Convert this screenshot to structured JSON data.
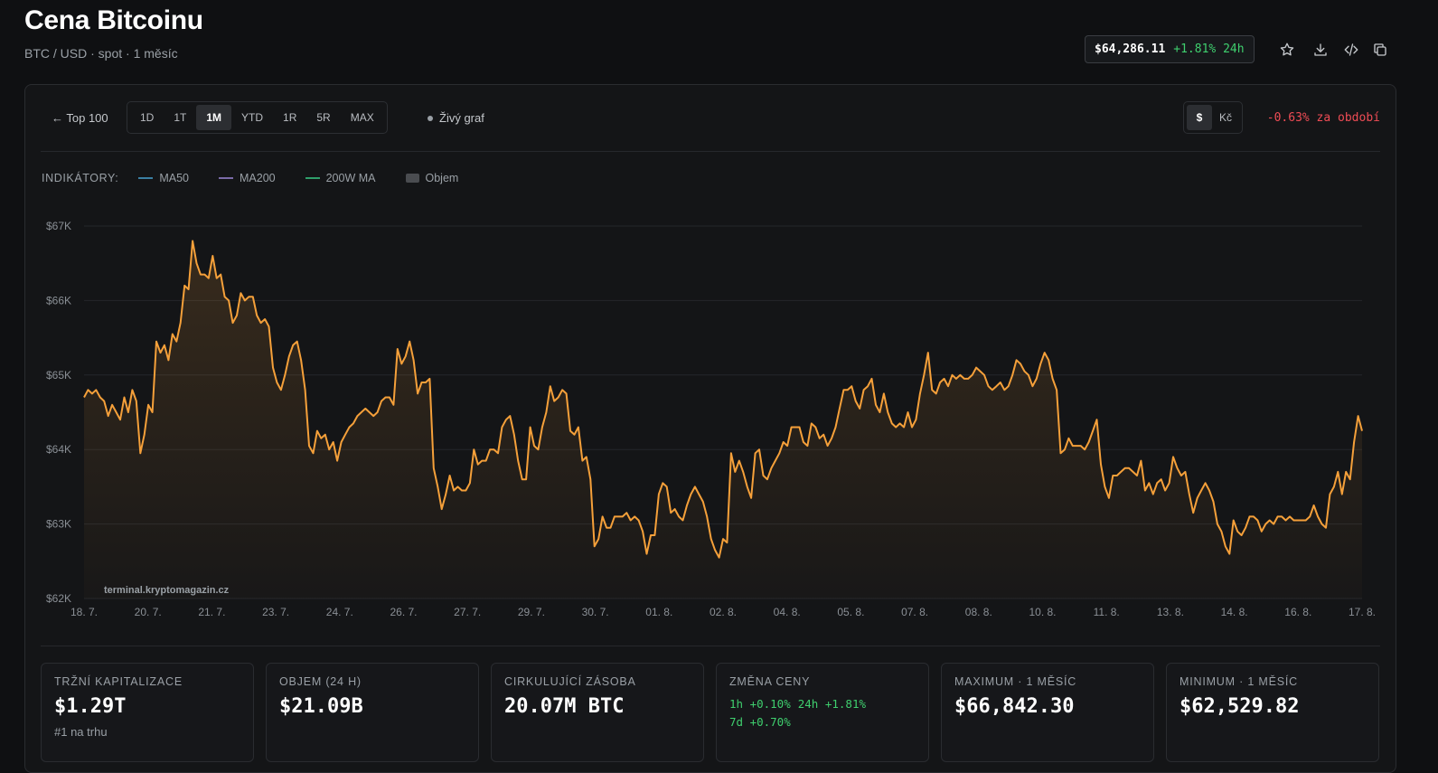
{
  "header": {
    "title": "Cena Bitcoinu",
    "subtitle": "BTC / USD · spot · 1 měsíc",
    "price": "$64,286.11",
    "change_24h": "+1.81% 24h",
    "icons": [
      "star-icon",
      "download-icon",
      "code-icon",
      "copy-icon"
    ]
  },
  "toolbar": {
    "back_label": "← Top 100",
    "ranges": [
      "1D",
      "1T",
      "1M",
      "YTD",
      "1R",
      "5R",
      "MAX"
    ],
    "active_range": "1M",
    "live_label": "Živý graf",
    "currencies": [
      "$",
      "Kč"
    ],
    "active_currency": "$",
    "period_change": "-0.63% za období"
  },
  "indicators": {
    "label": "INDIKÁTORY:",
    "items": [
      {
        "name": "MA50",
        "color": "#3b7fa3"
      },
      {
        "name": "MA200",
        "color": "#7a6aa8"
      },
      {
        "name": "200W MA",
        "color": "#2f9e6a"
      },
      {
        "name": "Objem",
        "color": "#4a4c50"
      }
    ]
  },
  "chart_data": {
    "type": "line",
    "x_ticks": [
      "18. 7.",
      "20. 7.",
      "21. 7.",
      "23. 7.",
      "24. 7.",
      "26. 7.",
      "27. 7.",
      "29. 7.",
      "30. 7.",
      "01. 8.",
      "02. 8.",
      "04. 8.",
      "05. 8.",
      "07. 8.",
      "08. 8.",
      "10. 8.",
      "11. 8.",
      "13. 8.",
      "14. 8.",
      "16. 8.",
      "17. 8."
    ],
    "y_ticks": [
      "$67K",
      "$66K",
      "$65K",
      "$64K",
      "$63K",
      "$62K"
    ],
    "ylim": [
      62000,
      67000
    ],
    "watermark": "terminal.kryptomagazin.cz",
    "line_color": "#f5a03a",
    "series": [
      {
        "values": [
          64700,
          64800,
          64750,
          64800,
          64700,
          64650,
          64450,
          64600,
          64500,
          64400,
          64700,
          64500,
          64800,
          64650,
          63950,
          64200,
          64600,
          64500,
          65450,
          65300,
          65400,
          65200,
          65550,
          65450,
          65700,
          66200,
          66150,
          66800,
          66500,
          66350,
          66350,
          66300,
          66600,
          66300,
          66350,
          66050,
          66000,
          65700,
          65800,
          66100,
          66000,
          66050,
          66050,
          65800,
          65700,
          65750,
          65650,
          65100,
          64900,
          64800,
          65000,
          65250,
          65400,
          65450,
          65200,
          64800,
          64050,
          63950,
          64250,
          64150,
          64200,
          64000,
          64100,
          63850,
          64100,
          64200,
          64300,
          64350,
          64450,
          64500,
          64550,
          64500,
          64450,
          64500,
          64650,
          64700,
          64700,
          64600,
          65350,
          65150,
          65250,
          65450,
          65200,
          64750,
          64900,
          64900,
          64950,
          63750,
          63500,
          63200,
          63400,
          63650,
          63450,
          63500,
          63450,
          63450,
          63550,
          64000,
          63800,
          63850,
          63850,
          64000,
          64000,
          63950,
          64300,
          64400,
          64450,
          64200,
          63850,
          63600,
          63600,
          64300,
          64050,
          64000,
          64300,
          64500,
          64850,
          64650,
          64700,
          64800,
          64750,
          64250,
          64200,
          64300,
          63850,
          63900,
          63600,
          62700,
          62800,
          63100,
          62950,
          62950,
          63100,
          63100,
          63100,
          63150,
          63050,
          63100,
          63050,
          62900,
          62600,
          62850,
          62850,
          63400,
          63550,
          63500,
          63150,
          63200,
          63100,
          63050,
          63250,
          63400,
          63500,
          63400,
          63300,
          63100,
          62800,
          62650,
          62550,
          62800,
          62750,
          63950,
          63700,
          63850,
          63700,
          63500,
          63350,
          63950,
          64000,
          63650,
          63600,
          63750,
          63850,
          63950,
          64100,
          64050,
          64300,
          64300,
          64300,
          64100,
          64050,
          64350,
          64300,
          64150,
          64200,
          64050,
          64150,
          64300,
          64550,
          64800,
          64800,
          64850,
          64650,
          64550,
          64800,
          64850,
          64950,
          64600,
          64500,
          64750,
          64500,
          64350,
          64300,
          64350,
          64300,
          64500,
          64300,
          64400,
          64750,
          65000,
          65300,
          64800,
          64750,
          64900,
          64950,
          64850,
          65000,
          64950,
          65000,
          64950,
          64950,
          65000,
          65100,
          65050,
          65000,
          64850,
          64800,
          64850,
          64900,
          64800,
          64850,
          65000,
          65200,
          65150,
          65050,
          65000,
          64850,
          64950,
          65150,
          65300,
          65200,
          64950,
          64800,
          63950,
          64000,
          64150,
          64050,
          64050,
          64050,
          64000,
          64100,
          64250,
          64400,
          63800,
          63500,
          63350,
          63650,
          63650,
          63700,
          63750,
          63750,
          63700,
          63650,
          63850,
          63450,
          63550,
          63400,
          63550,
          63600,
          63450,
          63550,
          63900,
          63750,
          63650,
          63700,
          63400,
          63150,
          63350,
          63450,
          63550,
          63450,
          63300,
          63000,
          62900,
          62700,
          62600,
          63050,
          62900,
          62850,
          62950,
          63100,
          63100,
          63050,
          62900,
          63000,
          63050,
          63000,
          63100,
          63100,
          63050,
          63100,
          63050,
          63050,
          63050,
          63050,
          63100,
          63250,
          63100,
          63000,
          62950,
          63400,
          63500,
          63700,
          63400,
          63700,
          63600,
          64100,
          64450,
          64250
        ]
      }
    ]
  },
  "stats": [
    {
      "label": "Tržní kapitalizace",
      "value": "$1.29T",
      "sub": "#1 na trhu"
    },
    {
      "label": "Objem (24 h)",
      "value": "$21.09B"
    },
    {
      "label": "Cirkulující zásoba",
      "value": "20.07M BTC"
    },
    {
      "label": "Změna ceny",
      "changes": [
        "1h +0.10%",
        "24h +1.81%",
        "7d +0.70%"
      ]
    },
    {
      "label": "Maximum · 1 měsíc",
      "value": "$66,842.30"
    },
    {
      "label": "Minimum · 1 měsíc",
      "value": "$62,529.82"
    }
  ]
}
